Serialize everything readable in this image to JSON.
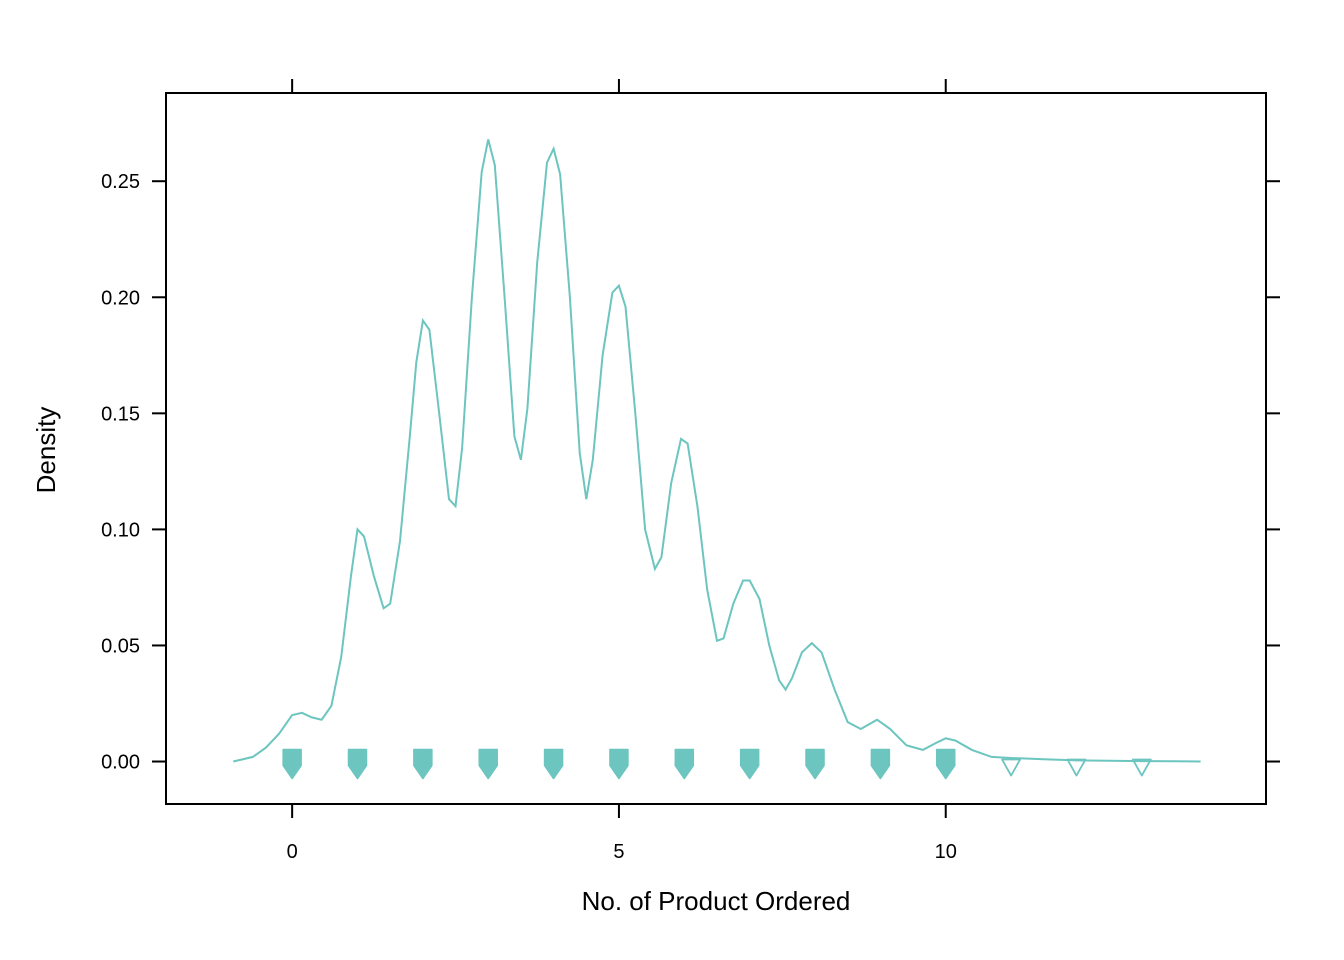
{
  "chart_data": {
    "type": "line",
    "title": "",
    "xlabel": "No. of Product Ordered",
    "ylabel": "Density",
    "xlim": [
      -1.93,
      14.9
    ],
    "ylim": [
      -0.0183,
      0.288
    ],
    "x_ticks": [
      0,
      5,
      10
    ],
    "x_tick_labels": [
      "0",
      "5",
      "10"
    ],
    "y_ticks": [
      0,
      0.05,
      0.1,
      0.15,
      0.2,
      0.25
    ],
    "y_tick_labels": [
      "0.00",
      "0.05",
      "0.10",
      "0.15",
      "0.20",
      "0.25"
    ],
    "grid": false,
    "legend": "none",
    "series": [
      {
        "color": "#6cc5bf",
        "points": [
          [
            -0.9,
            0.0
          ],
          [
            -0.6,
            0.002
          ],
          [
            -0.4,
            0.006
          ],
          [
            -0.2,
            0.012
          ],
          [
            0.0,
            0.02
          ],
          [
            0.15,
            0.021
          ],
          [
            0.3,
            0.019
          ],
          [
            0.45,
            0.018
          ],
          [
            0.6,
            0.024
          ],
          [
            0.75,
            0.045
          ],
          [
            0.9,
            0.08
          ],
          [
            1.0,
            0.1
          ],
          [
            1.1,
            0.097
          ],
          [
            1.25,
            0.08
          ],
          [
            1.4,
            0.066
          ],
          [
            1.5,
            0.068
          ],
          [
            1.65,
            0.095
          ],
          [
            1.8,
            0.14
          ],
          [
            1.9,
            0.172
          ],
          [
            2.0,
            0.19
          ],
          [
            2.1,
            0.186
          ],
          [
            2.25,
            0.15
          ],
          [
            2.4,
            0.113
          ],
          [
            2.5,
            0.11
          ],
          [
            2.6,
            0.135
          ],
          [
            2.75,
            0.2
          ],
          [
            2.9,
            0.254
          ],
          [
            3.0,
            0.268
          ],
          [
            3.1,
            0.257
          ],
          [
            3.25,
            0.2
          ],
          [
            3.4,
            0.14
          ],
          [
            3.5,
            0.13
          ],
          [
            3.6,
            0.152
          ],
          [
            3.75,
            0.215
          ],
          [
            3.9,
            0.258
          ],
          [
            4.0,
            0.264
          ],
          [
            4.1,
            0.253
          ],
          [
            4.25,
            0.2
          ],
          [
            4.4,
            0.133
          ],
          [
            4.5,
            0.113
          ],
          [
            4.6,
            0.13
          ],
          [
            4.75,
            0.175
          ],
          [
            4.9,
            0.202
          ],
          [
            5.0,
            0.205
          ],
          [
            5.1,
            0.196
          ],
          [
            5.25,
            0.15
          ],
          [
            5.4,
            0.1
          ],
          [
            5.55,
            0.083
          ],
          [
            5.65,
            0.088
          ],
          [
            5.8,
            0.12
          ],
          [
            5.95,
            0.139
          ],
          [
            6.05,
            0.137
          ],
          [
            6.2,
            0.11
          ],
          [
            6.35,
            0.074
          ],
          [
            6.5,
            0.052
          ],
          [
            6.6,
            0.053
          ],
          [
            6.75,
            0.068
          ],
          [
            6.9,
            0.078
          ],
          [
            7.0,
            0.078
          ],
          [
            7.15,
            0.07
          ],
          [
            7.3,
            0.05
          ],
          [
            7.45,
            0.035
          ],
          [
            7.55,
            0.031
          ],
          [
            7.65,
            0.036
          ],
          [
            7.8,
            0.047
          ],
          [
            7.95,
            0.051
          ],
          [
            8.1,
            0.047
          ],
          [
            8.3,
            0.031
          ],
          [
            8.5,
            0.017
          ],
          [
            8.7,
            0.014
          ],
          [
            8.95,
            0.018
          ],
          [
            9.15,
            0.014
          ],
          [
            9.4,
            0.007
          ],
          [
            9.65,
            0.005
          ],
          [
            9.85,
            0.008
          ],
          [
            10.0,
            0.01
          ],
          [
            10.15,
            0.009
          ],
          [
            10.4,
            0.005
          ],
          [
            10.7,
            0.002
          ],
          [
            11.0,
            0.0015
          ],
          [
            11.5,
            0.001
          ],
          [
            12.0,
            0.0005
          ],
          [
            12.5,
            0.0003
          ],
          [
            13.0,
            0.0002
          ],
          [
            13.5,
            0.0001
          ],
          [
            13.9,
            0.0
          ]
        ]
      }
    ],
    "rug": {
      "color": "#6cc5bf",
      "shape": "triangle-down",
      "filled_values": [
        0,
        1,
        2,
        3,
        4,
        5,
        6,
        7,
        8,
        9,
        10
      ],
      "open_values": [
        10,
        11,
        12,
        13
      ]
    }
  }
}
